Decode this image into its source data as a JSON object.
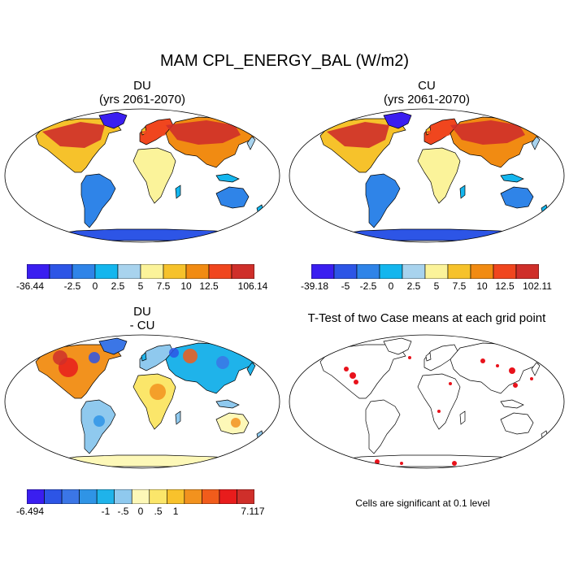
{
  "title": "MAM CPL_ENERGY_BAL (W/m2)",
  "panels": [
    {
      "id": "du",
      "title": "DU",
      "subtitle": "(yrs 2061-2070)",
      "palette": "full",
      "colorbar": {
        "colors": [
          "#3a1ef0",
          "#2d55e6",
          "#2f84e8",
          "#14b6ee",
          "#a8d3ee",
          "#fbf39a",
          "#f6c22b",
          "#f18b12",
          "#f0461e",
          "#cf2f2a"
        ],
        "labels": [
          "-36.44",
          "-2.5",
          "0",
          "2.5",
          "5",
          "7.5",
          "10",
          "12.5",
          "106.14"
        ]
      }
    },
    {
      "id": "cu",
      "title": "CU",
      "subtitle": "(yrs 2061-2070)",
      "palette": "full",
      "colorbar": {
        "colors": [
          "#3a1ef0",
          "#2d55e6",
          "#2f84e8",
          "#14b6ee",
          "#a8d3ee",
          "#fbf39a",
          "#f6c22b",
          "#f18b12",
          "#f0461e",
          "#cf2f2a"
        ],
        "labels": [
          "-39.18",
          "-5",
          "-2.5",
          "0",
          "2.5",
          "5",
          "7.5",
          "10",
          "12.5",
          "102.11"
        ]
      }
    },
    {
      "id": "diff",
      "title": "DU",
      "subtitle": "- CU",
      "palette": "diff",
      "colorbar": {
        "colors": [
          "#3a1ef0",
          "#2d55e6",
          "#3b76e6",
          "#2f94e6",
          "#1fb3ea",
          "#8fc9ee",
          "#fdf8b8",
          "#fbe66a",
          "#f8c22c",
          "#f2921e",
          "#f15c1b",
          "#e81c1c",
          "#cf2f2a"
        ],
        "labels": [
          "-6.494",
          "-1",
          "-.5",
          "0",
          ".5",
          "1",
          "7.117"
        ]
      }
    },
    {
      "id": "ttest",
      "title": "T-Test of two Case means at each grid point",
      "palette": "ttest",
      "note": "Cells are significant at 0.1 level"
    }
  ],
  "colors": {
    "outline": "#000000",
    "significant": "#e8121b"
  }
}
